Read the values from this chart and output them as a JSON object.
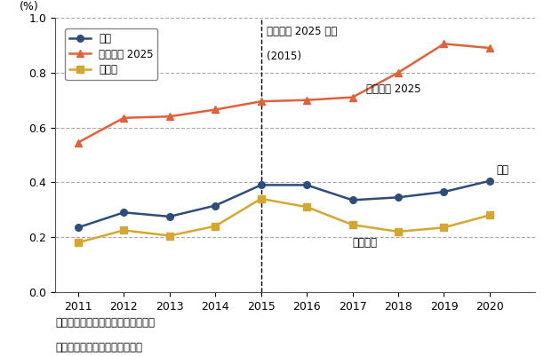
{
  "years": [
    2011,
    2012,
    2013,
    2014,
    2015,
    2016,
    2017,
    2018,
    2019,
    2020
  ],
  "zentai": [
    0.235,
    0.29,
    0.275,
    0.315,
    0.39,
    0.39,
    0.335,
    0.345,
    0.365,
    0.405
  ],
  "china2025": [
    0.545,
    0.635,
    0.64,
    0.665,
    0.695,
    0.7,
    0.71,
    0.8,
    0.905,
    0.89
  ],
  "sonota": [
    0.18,
    0.225,
    0.205,
    0.24,
    0.34,
    0.31,
    0.245,
    0.22,
    0.235,
    0.28
  ],
  "zentai_color": "#2e4d7b",
  "china2025_color": "#e0623a",
  "sonota_color": "#d4a830",
  "ylim": [
    0.0,
    1.0
  ],
  "yticks": [
    0.0,
    0.2,
    0.4,
    0.6,
    0.8,
    1.0
  ],
  "ylabel": "(%)",
  "vline_x": 2015,
  "vline_label_line1": "中国製造 2025 公表",
  "vline_label_line2": "(2015)",
  "label_zentai": "全体",
  "label_china2025": "中国製造 2025",
  "label_sonota": "その他",
  "annotation_china2025": "中国製造 2025",
  "annotation_zentai": "全体",
  "annotation_sonotaigai": "それ以外",
  "note1": "備考：補助金／売上高として計算。",
  "note2": "資料：各社公開情報より作成。",
  "bg_color": "#ffffff",
  "grid_color": "#aaaaaa",
  "xlim_left": 2010.5,
  "xlim_right": 2021.0
}
